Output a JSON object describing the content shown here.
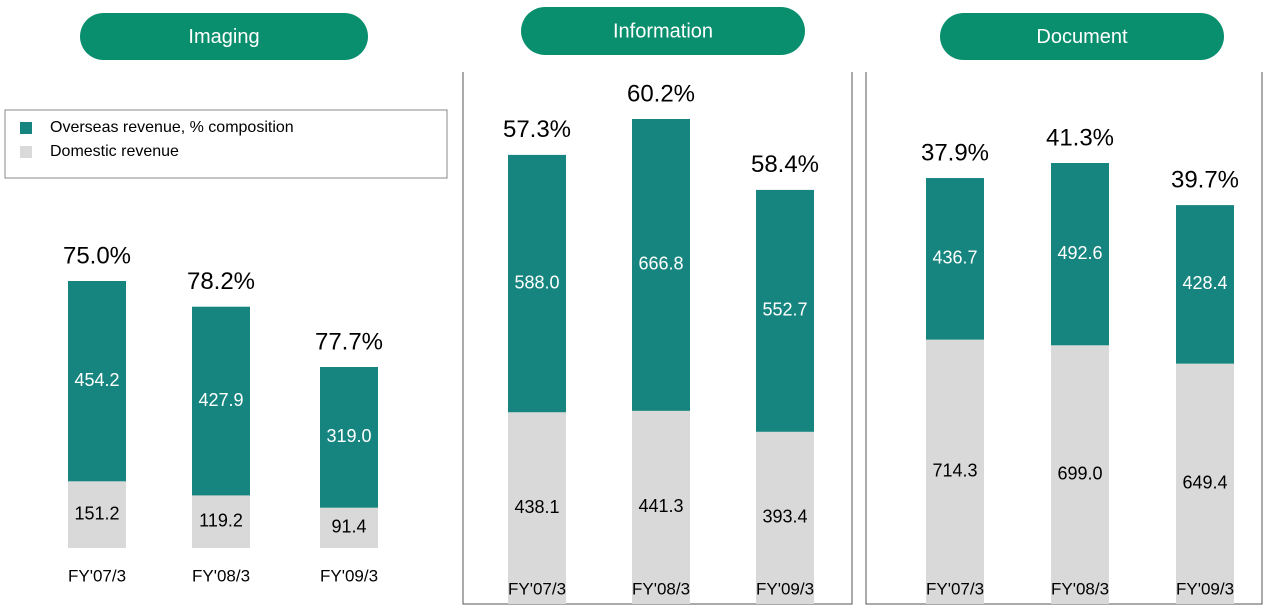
{
  "legend": {
    "items": [
      {
        "name": "Overseas revenue, % composition",
        "color": "#17857f"
      },
      {
        "name": "Domestic revenue",
        "color": "#d9d9d9"
      }
    ]
  },
  "chart_data": [
    {
      "type": "stacked_bar",
      "title": "Imaging",
      "categories": [
        "FY'07/3",
        "FY'08/3",
        "FY'09/3"
      ],
      "series": [
        {
          "values": [
            454.2,
            427.9,
            319.0
          ],
          "value_labels": [
            "454.2",
            "427.9",
            "319.0"
          ]
        },
        {
          "values": [
            151.2,
            119.2,
            91.4
          ],
          "value_labels": [
            "151.2",
            "119.2",
            "91.4"
          ]
        }
      ],
      "share_labels": [
        "75.0%",
        "78.2%",
        "77.7%"
      ]
    },
    {
      "type": "stacked_bar",
      "title": "Information",
      "categories": [
        "FY'07/3",
        "FY'08/3",
        "FY'09/3"
      ],
      "series": [
        {
          "values": [
            588.0,
            666.8,
            552.7
          ],
          "value_labels": [
            "588.0",
            "666.8",
            "552.7"
          ]
        },
        {
          "values": [
            438.1,
            441.3,
            393.4
          ],
          "value_labels": [
            "438.1",
            "441.3",
            "393.4"
          ]
        }
      ],
      "share_labels": [
        "57.3%",
        "60.2%",
        "58.4%"
      ]
    },
    {
      "type": "stacked_bar",
      "title": "Document",
      "categories": [
        "FY'07/3",
        "FY'08/3",
        "FY'09/3"
      ],
      "series": [
        {
          "values": [
            436.7,
            492.6,
            428.4
          ],
          "value_labels": [
            "436.7",
            "492.6",
            "428.4"
          ]
        },
        {
          "values": [
            714.3,
            699.0,
            649.4
          ],
          "value_labels": [
            "714.3",
            "699.0",
            "649.4"
          ]
        }
      ],
      "share_labels": [
        "37.9%",
        "41.3%",
        "39.7%"
      ]
    }
  ]
}
